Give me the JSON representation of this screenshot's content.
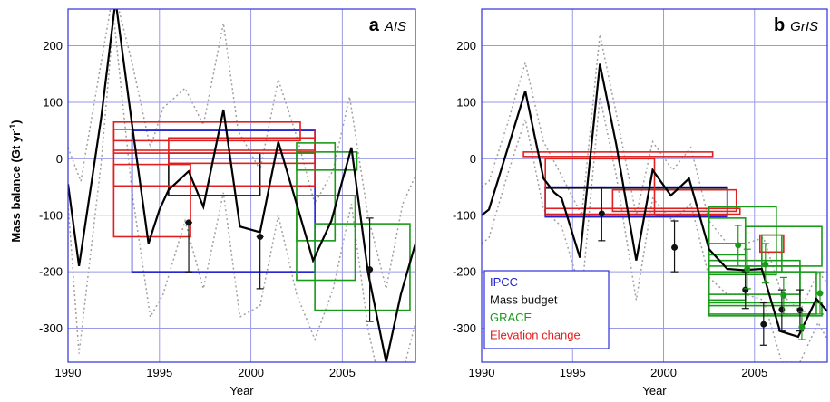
{
  "figure": {
    "y_axis_label": "Mass balance (Gt yr",
    "y_axis_label_sup": "-1",
    "y_axis_label_end": ")"
  },
  "chart_data": [
    {
      "type": "line",
      "panel_letter": "a",
      "panel_name": "AIS",
      "xlabel": "Year",
      "ylabel": "Mass balance (Gt yr-1)",
      "xlim": [
        1990,
        2009
      ],
      "ylim": [
        -360,
        265
      ],
      "x_ticks": [
        1990,
        1995,
        2000,
        2005
      ],
      "y_ticks": [
        -300,
        -200,
        -100,
        0,
        100,
        200
      ],
      "x_tick_labels": [
        "1990",
        "1995",
        "2000",
        "2005"
      ],
      "y_tick_labels": [
        "-300",
        "-200",
        "-100",
        "0",
        "100",
        "200"
      ],
      "grid": true,
      "colors": {
        "IPCC": "#2020d0",
        "Mass budget": "#111111",
        "GRACE": "#1a9a1a",
        "Elevation change": "#e02020",
        "envelope": "#a0a0a0"
      },
      "series": [
        {
          "points": [
            [
              1990,
              -45
            ],
            [
              1990.6,
              -190
            ],
            [
              1991.8,
              70
            ],
            [
              1992.6,
              280
            ],
            [
              1993.5,
              60
            ],
            [
              1994.4,
              -150
            ],
            [
              1995.0,
              -90
            ],
            [
              1995.5,
              -55
            ],
            [
              1996.6,
              -22
            ],
            [
              1997.4,
              -85
            ],
            [
              1998.5,
              87
            ],
            [
              1999.4,
              -120
            ],
            [
              2000.5,
              -130
            ],
            [
              2001.5,
              30
            ],
            [
              2002.5,
              -80
            ],
            [
              2003.4,
              -180
            ],
            [
              2004.4,
              -110
            ],
            [
              2005.5,
              20
            ],
            [
              2006.4,
              -200
            ],
            [
              2007.4,
              -360
            ],
            [
              2008.2,
              -240
            ],
            [
              2009,
              -150
            ]
          ]
        },
        {
          "style": "dotted",
          "points": [
            [
              1990,
              20
            ],
            [
              1990.7,
              -40
            ],
            [
              1991.7,
              150
            ],
            [
              1992.5,
              300
            ],
            [
              1993.5,
              170
            ],
            [
              1994.5,
              20
            ],
            [
              1995.2,
              90
            ],
            [
              1996.4,
              125
            ],
            [
              1997.4,
              60
            ],
            [
              1998.5,
              240
            ],
            [
              1999.3,
              50
            ],
            [
              2000.5,
              -20
            ],
            [
              2001.5,
              140
            ],
            [
              2002.5,
              40
            ],
            [
              2003.5,
              -80
            ],
            [
              2004.5,
              -20
            ],
            [
              2005.4,
              110
            ],
            [
              2006.4,
              -100
            ],
            [
              2007.4,
              -230
            ],
            [
              2008.3,
              -80
            ],
            [
              2009,
              -30
            ]
          ]
        },
        {
          "style": "dotted",
          "points": [
            [
              1990,
              -80
            ],
            [
              1990.6,
              -345
            ],
            [
              1991.8,
              -10
            ],
            [
              1992.5,
              250
            ],
            [
              1993.5,
              -60
            ],
            [
              1994.5,
              -280
            ],
            [
              1995.2,
              -240
            ],
            [
              1996.4,
              -110
            ],
            [
              1997.4,
              -230
            ],
            [
              1998.5,
              -60
            ],
            [
              1999.4,
              -280
            ],
            [
              2000.5,
              -260
            ],
            [
              2001.5,
              -100
            ],
            [
              2002.5,
              -240
            ],
            [
              2003.5,
              -320
            ],
            [
              2004.5,
              -230
            ],
            [
              2005.5,
              -80
            ],
            [
              2006.4,
              -300
            ],
            [
              2007.4,
              -450
            ],
            [
              2008.3,
              -380
            ],
            [
              2009,
              -290
            ]
          ]
        }
      ],
      "boxes": [
        {
          "source": "IPCC",
          "x0": 1993.5,
          "x1": 2003.5,
          "y0": -200,
          "y1": 50
        },
        {
          "source": "Mass budget",
          "x0": 1995.5,
          "x1": 2000.5,
          "y0": -65,
          "y1": 10
        },
        {
          "source": "Elevation change",
          "x0": 1992.5,
          "x1": 2002.7,
          "y0": 32,
          "y1": 65
        },
        {
          "source": "Elevation change",
          "x0": 1992.5,
          "x1": 2003.5,
          "y0": 10,
          "y1": 52
        },
        {
          "source": "Elevation change",
          "x0": 1992.5,
          "x1": 2003.5,
          "y0": -48,
          "y1": 15
        },
        {
          "source": "Elevation change",
          "x0": 1992.5,
          "x1": 1996.7,
          "y0": -138,
          "y1": -10
        },
        {
          "source": "Elevation change",
          "x0": 1995.5,
          "x1": 2003.5,
          "y0": -8,
          "y1": 37
        },
        {
          "source": "GRACE",
          "x0": 2002.5,
          "x1": 2005.8,
          "y0": -20,
          "y1": 12
        },
        {
          "source": "GRACE",
          "x0": 2002.5,
          "x1": 2005.7,
          "y0": -215,
          "y1": -65
        },
        {
          "source": "GRACE",
          "x0": 2002.5,
          "x1": 2004.6,
          "y0": -145,
          "y1": 28
        },
        {
          "source": "GRACE",
          "x0": 2003.5,
          "x1": 2008.7,
          "y0": -268,
          "y1": -115
        }
      ],
      "error_bars": [
        {
          "x": 1996.6,
          "y": -113,
          "lo": -200,
          "hi": -113
        },
        {
          "x": 2000.5,
          "y": -138,
          "lo": -230,
          "hi": -138
        },
        {
          "x": 2006.5,
          "y": -196,
          "lo": -288,
          "hi": -105
        }
      ]
    },
    {
      "type": "line",
      "panel_letter": "b",
      "panel_name": "GrIS",
      "xlabel": "Year",
      "ylabel": "Mass balance (Gt yr-1)",
      "xlim": [
        1990,
        2009
      ],
      "ylim": [
        -360,
        265
      ],
      "x_ticks": [
        1990,
        1995,
        2000,
        2005
      ],
      "y_ticks": [
        -300,
        -200,
        -100,
        0,
        100,
        200
      ],
      "x_tick_labels": [
        "1990",
        "1995",
        "2000",
        "2005"
      ],
      "y_tick_labels": [
        "-300",
        "-200",
        "-100",
        "0",
        "100",
        "200"
      ],
      "grid": true,
      "colors": {
        "IPCC": "#2020d0",
        "Mass budget": "#111111",
        "GRACE": "#1a9a1a",
        "Elevation change": "#e02020",
        "envelope": "#a0a0a0"
      },
      "series": [
        {
          "points": [
            [
              1990,
              -100
            ],
            [
              1990.4,
              -90
            ],
            [
              1991.4,
              15
            ],
            [
              1992.4,
              120
            ],
            [
              1993.4,
              -35
            ],
            [
              1994.0,
              -60
            ],
            [
              1994.4,
              -70
            ],
            [
              1995.4,
              -175
            ],
            [
              1996.5,
              168
            ],
            [
              1997.4,
              25
            ],
            [
              1998.5,
              -180
            ],
            [
              1999.4,
              -20
            ],
            [
              2000.4,
              -65
            ],
            [
              2001.4,
              -35
            ],
            [
              2002.5,
              -160
            ],
            [
              2003.5,
              -195
            ],
            [
              2004.4,
              -197
            ],
            [
              2005.4,
              -195
            ],
            [
              2006.4,
              -305
            ],
            [
              2007.4,
              -315
            ],
            [
              2008.4,
              -248
            ],
            [
              2009,
              -270
            ]
          ]
        },
        {
          "style": "dotted",
          "points": [
            [
              1990,
              -50
            ],
            [
              1990.4,
              -40
            ],
            [
              1991.4,
              60
            ],
            [
              1992.4,
              170
            ],
            [
              1993.4,
              30
            ],
            [
              1994.4,
              -30
            ],
            [
              1995.5,
              -100
            ],
            [
              1996.5,
              220
            ],
            [
              1997.4,
              80
            ],
            [
              1998.5,
              -100
            ],
            [
              1999.4,
              30
            ],
            [
              2000.5,
              -20
            ],
            [
              2001.5,
              20
            ],
            [
              2002.5,
              -110
            ],
            [
              2003.5,
              -150
            ],
            [
              2004.5,
              -150
            ],
            [
              2005.5,
              -140
            ],
            [
              2006.5,
              -240
            ],
            [
              2007.5,
              -270
            ],
            [
              2008.5,
              -200
            ],
            [
              2009,
              -220
            ]
          ]
        },
        {
          "style": "dotted",
          "points": [
            [
              1990,
              -150
            ],
            [
              1990.4,
              -140
            ],
            [
              1991.4,
              -30
            ],
            [
              1992.4,
              70
            ],
            [
              1993.4,
              -90
            ],
            [
              1994.4,
              -120
            ],
            [
              1995.5,
              -240
            ],
            [
              1996.5,
              110
            ],
            [
              1997.4,
              -30
            ],
            [
              1998.5,
              -250
            ],
            [
              1999.4,
              -70
            ],
            [
              2000.5,
              -110
            ],
            [
              2001.5,
              -80
            ],
            [
              2002.5,
              -210
            ],
            [
              2003.5,
              -240
            ],
            [
              2004.5,
              -240
            ],
            [
              2005.5,
              -250
            ],
            [
              2006.5,
              -360
            ],
            [
              2007.5,
              -360
            ],
            [
              2008.5,
              -290
            ],
            [
              2009,
              -320
            ]
          ]
        }
      ],
      "boxes": [
        {
          "source": "IPCC",
          "x0": 1993.5,
          "x1": 2003.5,
          "y0": -103,
          "y1": -50
        },
        {
          "source": "Mass budget",
          "x0": 1993.5,
          "x1": 2003.5,
          "y0": -100,
          "y1": -52
        },
        {
          "source": "Elevation change",
          "x0": 1992.3,
          "x1": 2002.7,
          "y0": 4,
          "y1": 12
        },
        {
          "source": "Elevation change",
          "x0": 1993.5,
          "x1": 1999.5,
          "y0": -100,
          "y1": 0
        },
        {
          "source": "Elevation change",
          "x0": 1997.2,
          "x1": 2004.0,
          "y0": -93,
          "y1": -55
        },
        {
          "source": "Elevation change",
          "x0": 1993.5,
          "x1": 2004.2,
          "y0": -98,
          "y1": -88
        },
        {
          "source": "Elevation change",
          "x0": 2005.3,
          "x1": 2006.6,
          "y0": -165,
          "y1": -135
        },
        {
          "source": "GRACE",
          "x0": 2002.5,
          "x1": 2004.5,
          "y0": -250,
          "y1": -150
        },
        {
          "source": "GRACE",
          "x0": 2002.5,
          "x1": 2004.5,
          "y0": -170,
          "y1": -105
        },
        {
          "source": "GRACE",
          "x0": 2002.5,
          "x1": 2006.2,
          "y0": -205,
          "y1": -85
        },
        {
          "source": "GRACE",
          "x0": 2002.5,
          "x1": 2007.5,
          "y0": -260,
          "y1": -190
        },
        {
          "source": "GRACE",
          "x0": 2002.5,
          "x1": 2007.5,
          "y0": -240,
          "y1": -180
        },
        {
          "source": "GRACE",
          "x0": 2004.5,
          "x1": 2008.7,
          "y0": -190,
          "y1": -120
        },
        {
          "source": "GRACE",
          "x0": 2002.5,
          "x1": 2008.7,
          "y0": -278,
          "y1": -255
        },
        {
          "source": "GRACE",
          "x0": 2002.5,
          "x1": 2008.4,
          "y0": -275,
          "y1": -200
        },
        {
          "source": "GRACE",
          "x0": 2005.4,
          "x1": 2006.5,
          "y0": -200,
          "y1": -135
        }
      ],
      "error_bars": [
        {
          "x": 1996.6,
          "y": -97,
          "lo": -145,
          "hi": -50
        },
        {
          "x": 2000.6,
          "y": -157,
          "lo": -200,
          "hi": -110
        },
        {
          "x": 2004.5,
          "y": -232,
          "lo": -265,
          "hi": -200
        },
        {
          "x": 2005.5,
          "y": -293,
          "lo": -330,
          "hi": -255
        },
        {
          "x": 2006.5,
          "y": -267,
          "lo": -305,
          "hi": -232
        },
        {
          "x": 2007.5,
          "y": -268,
          "lo": -305,
          "hi": -232
        },
        {
          "x": 2004.1,
          "y": -153,
          "lo": -190,
          "hi": -118
        },
        {
          "x": 2004.6,
          "y": -195,
          "lo": -230,
          "hi": -160
        },
        {
          "x": 2005.6,
          "y": -187,
          "lo": -220,
          "hi": -150
        },
        {
          "x": 2006.6,
          "y": -242,
          "lo": -275,
          "hi": -210
        },
        {
          "x": 2007.6,
          "y": -298,
          "lo": -320,
          "hi": -270
        },
        {
          "x": 2008.6,
          "y": -238,
          "lo": -275,
          "hi": -200
        }
      ],
      "error_bar_colors": [
        "#111111",
        "#111111",
        "#111111",
        "#111111",
        "#111111",
        "#111111",
        "#1a9a1a",
        "#1a9a1a",
        "#1a9a1a",
        "#1a9a1a",
        "#1a9a1a",
        "#1a9a1a"
      ],
      "legend": {
        "placement": "bottom-left",
        "entries": [
          {
            "label": "IPCC",
            "color": "#2020d0"
          },
          {
            "label": "Mass budget",
            "color": "#111111"
          },
          {
            "label": "GRACE",
            "color": "#1a9a1a"
          },
          {
            "label": "Elevation change",
            "color": "#e02020"
          }
        ]
      }
    }
  ]
}
